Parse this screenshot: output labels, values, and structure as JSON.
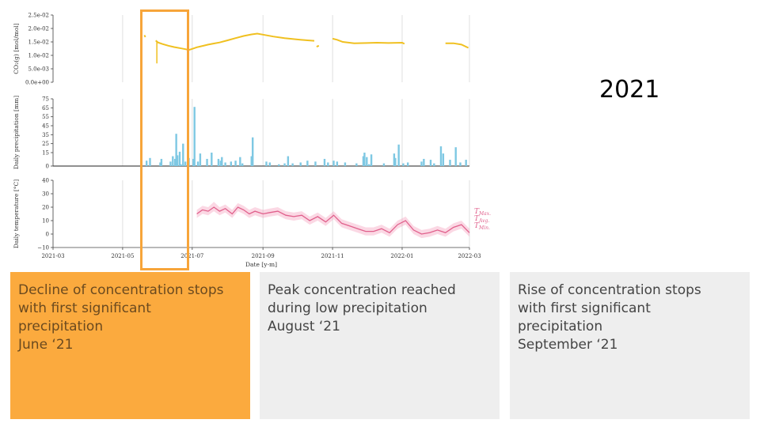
{
  "year_label": "2021",
  "highlight_color": "#f7a53a",
  "cards": [
    {
      "lines": [
        "Decline of concentration stops",
        "with first significant",
        "precipitation",
        "June ‘21"
      ],
      "bg": "#fbaa3e",
      "highlighted": true
    },
    {
      "lines": [
        "Peak concentration reached",
        "during low precipitation",
        "August ‘21"
      ],
      "bg": "#eeeeee",
      "highlighted": false
    },
    {
      "lines": [
        "Rise of concentration stops",
        "with first significant",
        "precipitation",
        "September ‘21"
      ],
      "bg": "#eeeeee",
      "highlighted": false
    }
  ],
  "chart_data": {
    "type": "line",
    "xlabel": "Date [y-m]",
    "x_ticks": [
      "2021-03",
      "2021-05",
      "2021-07",
      "2021-09",
      "2021-11",
      "2022-01",
      "2022-03"
    ],
    "x_range": [
      "2021-03-01",
      "2022-03-01"
    ],
    "grid": "vertical",
    "panels": [
      {
        "type": "line",
        "ylabel": "CO₂(g) [mol/mol]",
        "y_ticks": [
          "0.0e+00",
          "5.0e-03",
          "1.0e-02",
          "1.5e-02",
          "2.0e-02",
          "2.5e-02"
        ],
        "ylim": [
          0,
          0.025
        ],
        "color": "#f0c020",
        "series": [
          {
            "segments": [
              [
                [
                  "2021-05-20",
                  0.0175
                ],
                [
                  "2021-05-21",
                  0.0168
                ]
              ],
              [
                [
                  "2021-05-30",
                  0.0155
                ],
                [
                  "2021-06-01",
                  0.0148
                ],
                [
                  "2021-06-05",
                  0.0142
                ],
                [
                  "2021-06-10",
                  0.0136
                ],
                [
                  "2021-06-15",
                  0.0131
                ],
                [
                  "2021-06-20",
                  0.0127
                ],
                [
                  "2021-06-25",
                  0.0123
                ],
                [
                  "2021-06-28",
                  0.012
                ],
                [
                  "2021-07-01",
                  0.0124
                ],
                [
                  "2021-07-05",
                  0.013
                ],
                [
                  "2021-07-10",
                  0.0135
                ],
                [
                  "2021-07-15",
                  0.014
                ],
                [
                  "2021-07-20",
                  0.0144
                ],
                [
                  "2021-07-25",
                  0.0148
                ],
                [
                  "2021-08-01",
                  0.0156
                ],
                [
                  "2021-08-08",
                  0.0164
                ],
                [
                  "2021-08-15",
                  0.0172
                ],
                [
                  "2021-08-22",
                  0.0178
                ],
                [
                  "2021-08-27",
                  0.0181
                ],
                [
                  "2021-09-01",
                  0.0177
                ],
                [
                  "2021-09-10",
                  0.017
                ],
                [
                  "2021-09-20",
                  0.0164
                ],
                [
                  "2021-10-01",
                  0.0159
                ],
                [
                  "2021-10-10",
                  0.0156
                ],
                [
                  "2021-10-16",
                  0.0154
                ]
              ],
              [
                [
                  "2021-10-18",
                  0.0132
                ],
                [
                  "2021-10-20",
                  0.0136
                ]
              ],
              [
                [
                  "2021-11-01",
                  0.0162
                ],
                [
                  "2021-11-05",
                  0.0158
                ],
                [
                  "2021-11-10",
                  0.015
                ],
                [
                  "2021-11-20",
                  0.0145
                ],
                [
                  "2021-12-01",
                  0.0146
                ],
                [
                  "2021-12-10",
                  0.0147
                ],
                [
                  "2021-12-20",
                  0.0146
                ],
                [
                  "2022-01-01",
                  0.0147
                ],
                [
                  "2022-01-03",
                  0.0143
                ]
              ],
              [
                [
                  "2022-02-08",
                  0.0145
                ],
                [
                  "2022-02-15",
                  0.0145
                ],
                [
                  "2022-02-22",
                  0.014
                ],
                [
                  "2022-02-28",
                  0.0128
                ]
              ]
            ]
          }
        ],
        "annotations": [
          {
            "type": "vertical-drop",
            "x": "2021-05-31",
            "y_from": 0.015,
            "y_to": 0.007
          }
        ]
      },
      {
        "type": "bar",
        "ylabel": "Daily precipitation [mm]",
        "y_ticks": [
          "0",
          "15",
          "25",
          "35",
          "45",
          "55",
          "65",
          "75"
        ],
        "ylim": [
          0,
          75
        ],
        "color": "#7ec8e3",
        "x": [
          "2021-05-22",
          "2021-05-25",
          "2021-06-03",
          "2021-06-04",
          "2021-06-12",
          "2021-06-14",
          "2021-06-16",
          "2021-06-17",
          "2021-06-18",
          "2021-06-20",
          "2021-06-21",
          "2021-06-23",
          "2021-06-25",
          "2021-06-28",
          "2021-07-02",
          "2021-07-03",
          "2021-07-06",
          "2021-07-08",
          "2021-07-14",
          "2021-07-18",
          "2021-07-24",
          "2021-07-26",
          "2021-07-27",
          "2021-07-30",
          "2021-08-04",
          "2021-08-08",
          "2021-08-12",
          "2021-08-14",
          "2021-08-22",
          "2021-08-23",
          "2021-09-04",
          "2021-09-07",
          "2021-09-15",
          "2021-09-20",
          "2021-09-23",
          "2021-09-27",
          "2021-10-04",
          "2021-10-10",
          "2021-10-17",
          "2021-10-25",
          "2021-10-28",
          "2021-11-02",
          "2021-11-05",
          "2021-11-12",
          "2021-11-22",
          "2021-11-28",
          "2021-11-29",
          "2021-12-01",
          "2021-12-03",
          "2021-12-05",
          "2021-12-16",
          "2021-12-25",
          "2021-12-26",
          "2021-12-29",
          "2022-01-02",
          "2022-01-06",
          "2022-01-18",
          "2022-01-20",
          "2022-01-26",
          "2022-01-29",
          "2022-02-04",
          "2022-02-06",
          "2022-02-12",
          "2022-02-17",
          "2022-02-21",
          "2022-02-26"
        ],
        "values": [
          6,
          9,
          4,
          8,
          5,
          11,
          8,
          36,
          12,
          16,
          2,
          25,
          5,
          9,
          8,
          66,
          5,
          14,
          8,
          15,
          8,
          6,
          10,
          4,
          5,
          6,
          10,
          3,
          11,
          32,
          5,
          4,
          2,
          3,
          11,
          3,
          4,
          6,
          5,
          8,
          4,
          6,
          5,
          4,
          3,
          11,
          15,
          10,
          2,
          13,
          3,
          14,
          9,
          24,
          3,
          4,
          5,
          8,
          7,
          3,
          22,
          14,
          7,
          21,
          4,
          7
        ]
      },
      {
        "type": "area",
        "ylabel": "Daily temperature [°C]",
        "y_ticks": [
          "−10",
          "0",
          "10",
          "20",
          "30",
          "40"
        ],
        "ylim": [
          -10,
          40
        ],
        "color": "#f48fb1",
        "legend": {
          "entries": [
            "T_Max",
            "T_Avg",
            "T_Min"
          ],
          "placement": "right"
        },
        "x": [
          "2021-07-05",
          "2021-07-10",
          "2021-07-15",
          "2021-07-20",
          "2021-07-25",
          "2021-07-30",
          "2021-08-05",
          "2021-08-10",
          "2021-08-15",
          "2021-08-20",
          "2021-08-25",
          "2021-09-01",
          "2021-09-07",
          "2021-09-14",
          "2021-09-21",
          "2021-09-28",
          "2021-10-05",
          "2021-10-12",
          "2021-10-19",
          "2021-10-26",
          "2021-11-02",
          "2021-11-09",
          "2021-11-16",
          "2021-11-23",
          "2021-11-30",
          "2021-12-07",
          "2021-12-14",
          "2021-12-21",
          "2021-12-28",
          "2022-01-04",
          "2022-01-11",
          "2022-01-18",
          "2022-01-25",
          "2022-02-01",
          "2022-02-08",
          "2022-02-15",
          "2022-02-22",
          "2022-03-01"
        ],
        "avg": [
          15,
          18,
          17,
          20,
          17,
          19,
          15,
          20,
          18,
          15,
          17,
          15,
          16,
          17,
          14,
          13,
          14,
          10,
          13,
          9,
          14,
          8,
          6,
          4,
          2,
          2,
          4,
          1,
          7,
          10,
          3,
          0,
          1,
          3,
          1,
          5,
          7,
          1
        ],
        "max": [
          18,
          21,
          20,
          24,
          20,
          22,
          18,
          23,
          21,
          18,
          20,
          18,
          19,
          20,
          17,
          16,
          17,
          13,
          16,
          12,
          17,
          11,
          9,
          7,
          5,
          5,
          7,
          4,
          10,
          13,
          6,
          3,
          4,
          6,
          4,
          8,
          10,
          4
        ],
        "min": [
          12,
          15,
          14,
          17,
          14,
          16,
          12,
          17,
          15,
          12,
          14,
          12,
          13,
          14,
          11,
          10,
          11,
          7,
          10,
          6,
          11,
          5,
          3,
          1,
          -1,
          -1,
          1,
          -2,
          4,
          7,
          0,
          -3,
          -2,
          0,
          -2,
          2,
          4,
          -2
        ]
      }
    ]
  }
}
